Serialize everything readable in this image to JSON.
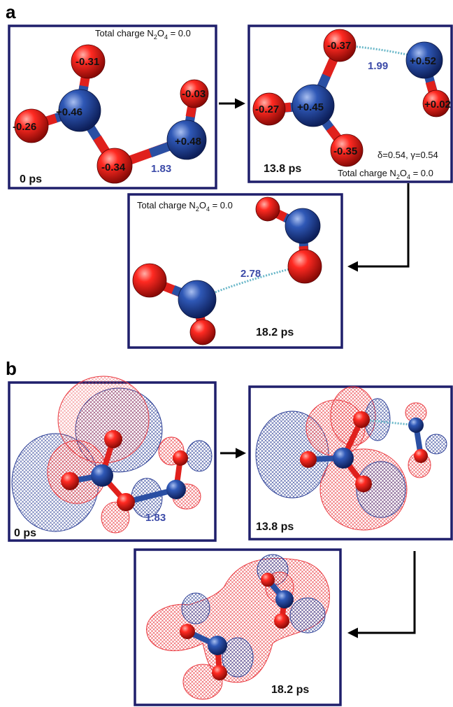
{
  "panel_a": {
    "letter": "a",
    "frame1": {
      "time": "0 ps",
      "charge_prefix": "Total charge N",
      "charge_sub1": "2",
      "charge_mid": "O",
      "charge_sub2": "4",
      "charge_suffix": " = 0.0",
      "charges": [
        "-0.31",
        "+0.46",
        "-0.26",
        "-0.34",
        "+0.48",
        "-0.03"
      ],
      "distance": "1.83"
    },
    "frame2": {
      "time": "13.8 ps",
      "charge_prefix": "Total charge N",
      "charge_sub1": "2",
      "charge_mid": "O",
      "charge_sub2": "4",
      "charge_suffix": " = 0.0",
      "charges": [
        "-0.37",
        "+0.45",
        "-0.27",
        "-0.35",
        "+0.52",
        "+0.02"
      ],
      "distance": "1.99",
      "params": "δ=0.54, γ=0.54"
    },
    "frame3": {
      "time": "18.2 ps",
      "charge_prefix": "Total charge N",
      "charge_sub1": "2",
      "charge_mid": "O",
      "charge_sub2": "4",
      "charge_suffix": " = 0.0",
      "distance": "2.78"
    }
  },
  "panel_b": {
    "letter": "b",
    "frame1": {
      "time": "0 ps",
      "distance": "1.83"
    },
    "frame2": {
      "time": "13.8 ps"
    },
    "frame3": {
      "time": "18.2 ps"
    }
  },
  "colors": {
    "frame": "#1f1f6b",
    "oxygen": "#e0201c",
    "nitrogen": "#2a4fa3",
    "orbital_red": "#e8323a",
    "orbital_blue": "#2c3f96",
    "distance_text": "#3b4aa8"
  }
}
